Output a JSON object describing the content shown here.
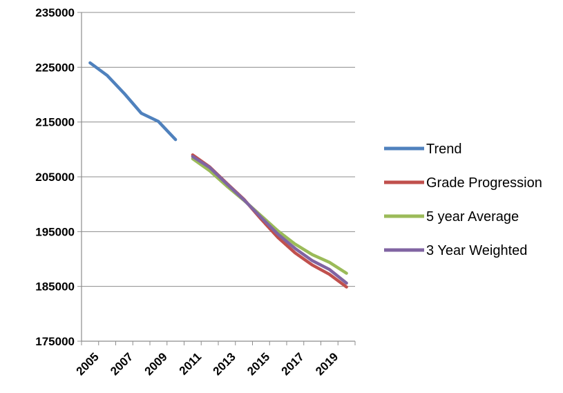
{
  "chart_data": {
    "type": "line",
    "title": "",
    "xlabel": "",
    "ylabel": "",
    "ylim": [
      175000,
      235000
    ],
    "yticks": [
      175000,
      185000,
      195000,
      205000,
      215000,
      225000,
      235000
    ],
    "xlim": [
      2005,
      2020
    ],
    "xticks": [
      2005,
      2007,
      2009,
      2011,
      2013,
      2015,
      2017,
      2019
    ],
    "grid": "horizontal",
    "legend_position": "right",
    "series": [
      {
        "name": "Trend",
        "color": "#4F81BD",
        "points": [
          [
            2005,
            225800
          ],
          [
            2006,
            223500
          ],
          [
            2007,
            220200
          ],
          [
            2008,
            216600
          ],
          [
            2009,
            215100
          ],
          [
            2010,
            211800
          ]
        ]
      },
      {
        "name": "Grade Progression",
        "color": "#C0504D",
        "points": [
          [
            2011,
            209000
          ],
          [
            2012,
            206800
          ],
          [
            2013,
            203800
          ],
          [
            2014,
            200900
          ],
          [
            2015,
            197300
          ],
          [
            2016,
            193900
          ],
          [
            2017,
            191100
          ],
          [
            2018,
            188900
          ],
          [
            2019,
            187200
          ],
          [
            2020,
            184900
          ]
        ]
      },
      {
        "name": "5 year Average",
        "color": "#9BBB59",
        "points": [
          [
            2011,
            208300
          ],
          [
            2012,
            206100
          ],
          [
            2013,
            203300
          ],
          [
            2014,
            200700
          ],
          [
            2015,
            197900
          ],
          [
            2016,
            195100
          ],
          [
            2017,
            192700
          ],
          [
            2018,
            190800
          ],
          [
            2019,
            189400
          ],
          [
            2020,
            187400
          ]
        ]
      },
      {
        "name": "3 Year Weighted",
        "color": "#8064A2",
        "points": [
          [
            2011,
            208700
          ],
          [
            2012,
            206700
          ],
          [
            2013,
            203700
          ],
          [
            2014,
            200800
          ],
          [
            2015,
            197600
          ],
          [
            2016,
            194500
          ],
          [
            2017,
            191900
          ],
          [
            2018,
            189700
          ],
          [
            2019,
            188100
          ],
          [
            2020,
            185600
          ]
        ]
      }
    ]
  }
}
